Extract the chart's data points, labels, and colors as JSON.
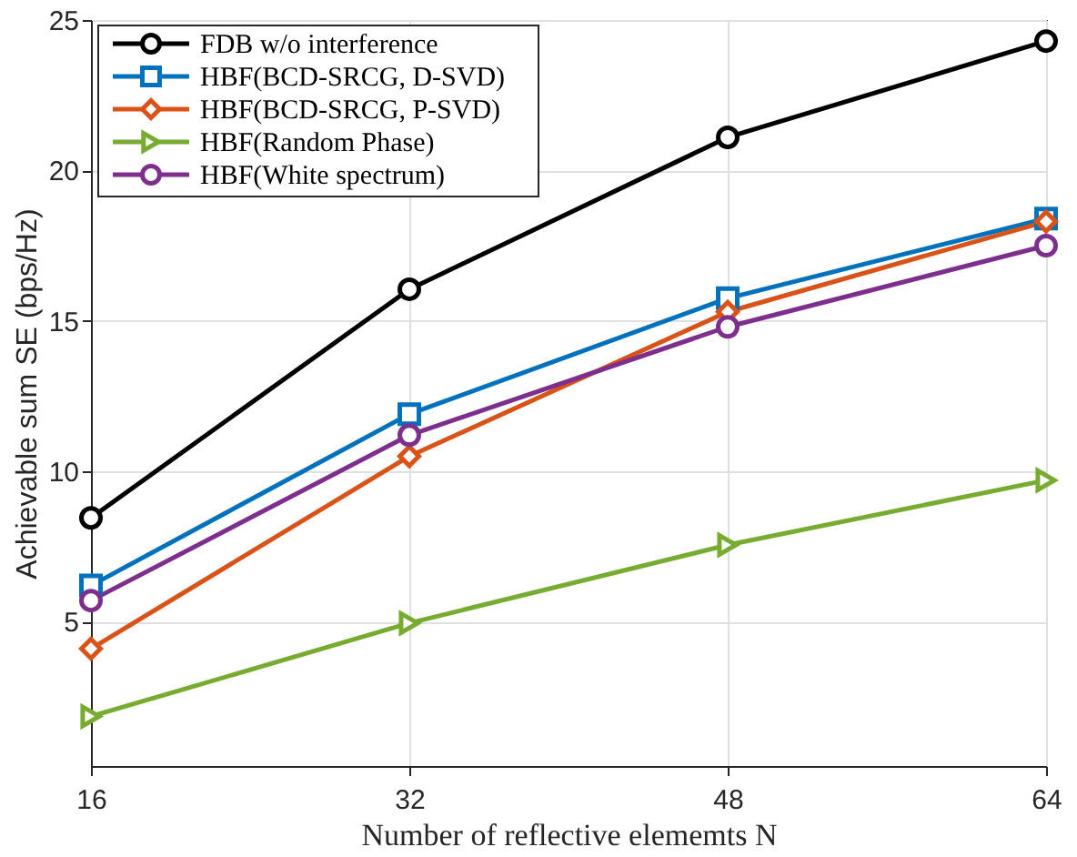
{
  "chart_data": {
    "type": "line",
    "xlabel": "Number of reflective elememts N",
    "ylabel": "Achievable sum SE (bps/Hz)",
    "x": [
      16,
      32,
      48,
      64
    ],
    "xlim": [
      16,
      64
    ],
    "xticks": [
      16,
      32,
      48,
      64
    ],
    "ylim": [
      0.2,
      25
    ],
    "yticks": [
      5,
      10,
      15,
      20,
      25
    ],
    "grid": true,
    "legend": "top left",
    "series": [
      {
        "name": "FDB w/o interference",
        "color": "#000000",
        "marker": "circle",
        "values": [
          8.45,
          16.05,
          21.1,
          24.3
        ]
      },
      {
        "name": "HBF(BCD-SRCG, D-SVD)",
        "color": "#0072bd",
        "marker": "square",
        "values": [
          6.2,
          11.9,
          15.75,
          18.4
        ]
      },
      {
        "name": "HBF(BCD-SRCG, P-SVD)",
        "color": "#d95319",
        "marker": "diamond",
        "values": [
          4.1,
          10.5,
          15.3,
          18.3
        ]
      },
      {
        "name": "HBF(Random Phase)",
        "color": "#77ac30",
        "marker": "triangle",
        "values": [
          1.85,
          4.95,
          7.55,
          9.7
        ]
      },
      {
        "name": "HBF(White spectrum)",
        "color": "#7e2f8e",
        "marker": "circle",
        "values": [
          5.7,
          11.2,
          14.8,
          17.5
        ]
      }
    ]
  }
}
